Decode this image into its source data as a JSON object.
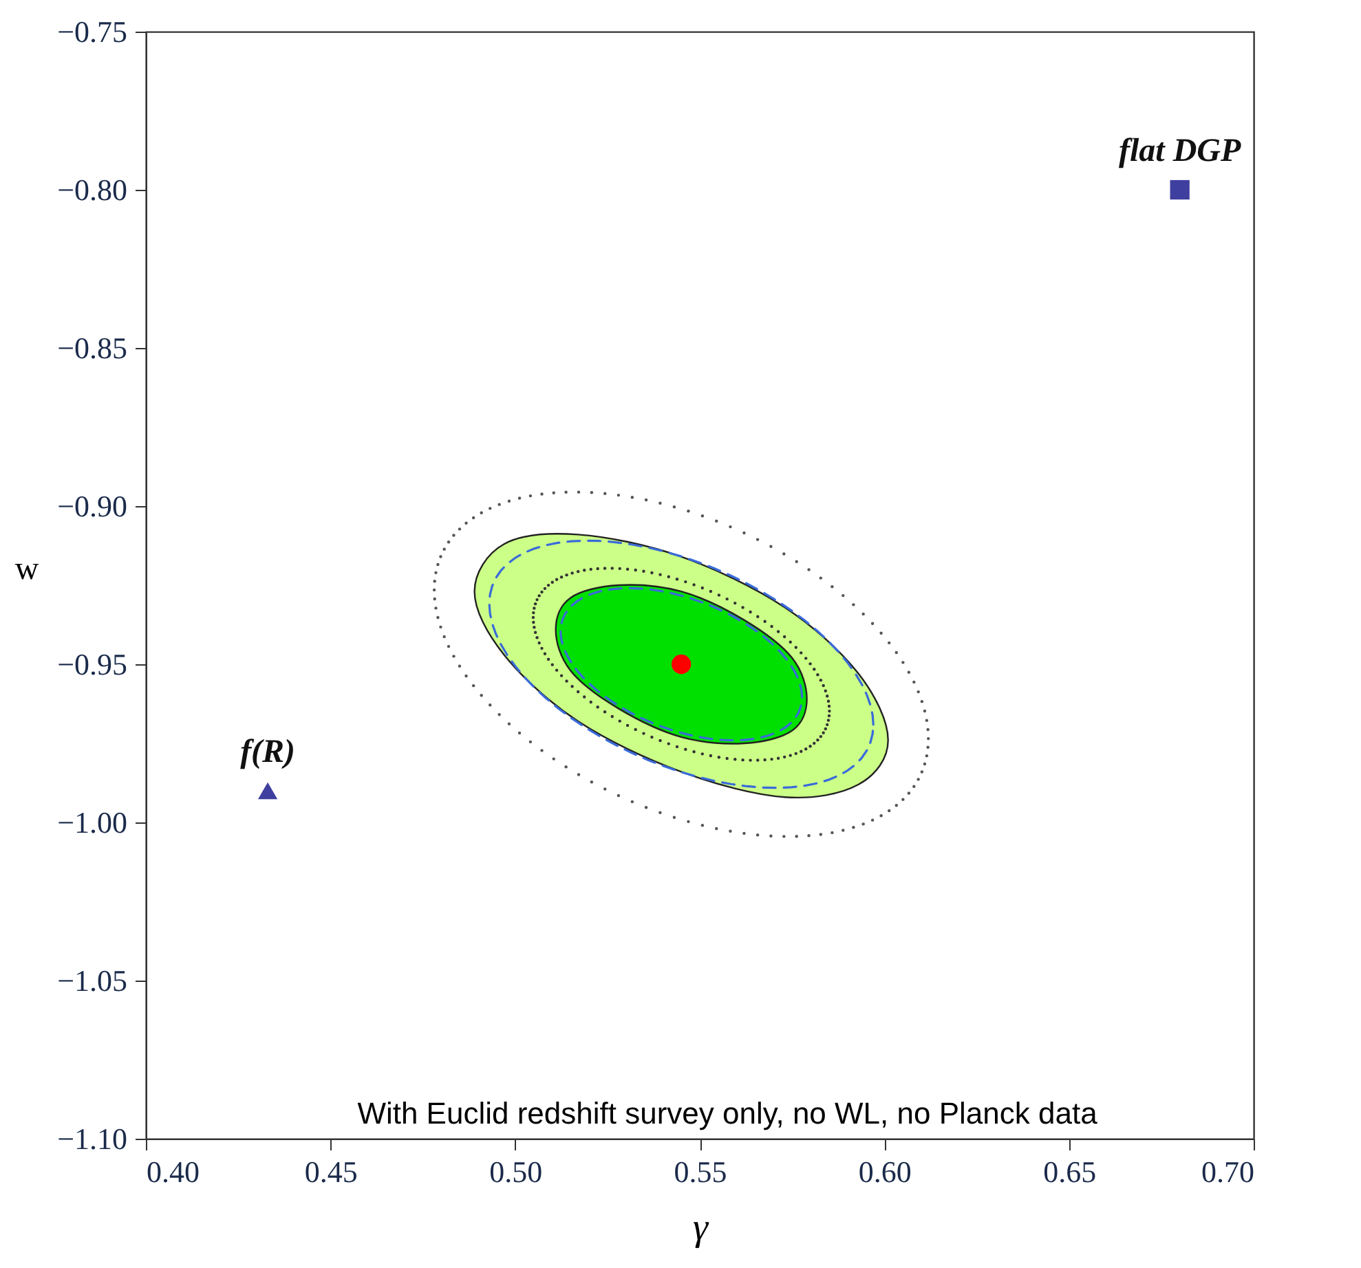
{
  "chart_data": {
    "type": "scatter",
    "xlabel": "γ",
    "ylabel": "w",
    "xlim": [
      0.4,
      0.7
    ],
    "ylim": [
      -1.1,
      -0.75
    ],
    "xticks": [
      {
        "value": 0.4,
        "label": "0.40"
      },
      {
        "value": 0.45,
        "label": "0.45"
      },
      {
        "value": 0.5,
        "label": "0.50"
      },
      {
        "value": 0.55,
        "label": "0.55"
      },
      {
        "value": 0.6,
        "label": "0.60"
      },
      {
        "value": 0.65,
        "label": "0.65"
      },
      {
        "value": 0.7,
        "label": "0.70"
      }
    ],
    "yticks": [
      {
        "value": -1.1,
        "label": "−1.10"
      },
      {
        "value": -1.05,
        "label": "−1.05"
      },
      {
        "value": -1.0,
        "label": "−1.00"
      },
      {
        "value": -0.95,
        "label": "−0.95"
      },
      {
        "value": -0.9,
        "label": "−0.90"
      },
      {
        "value": -0.85,
        "label": "−0.85"
      },
      {
        "value": -0.8,
        "label": "−0.80"
      },
      {
        "value": -0.75,
        "label": "−0.75"
      }
    ],
    "grid": false,
    "series": [
      {
        "type": "area",
        "color": "#ccff88",
        "x": [
          0.601,
          0.593,
          0.573,
          0.545,
          0.517,
          0.497,
          0.489,
          0.497,
          0.517,
          0.545,
          0.573,
          0.593
        ],
        "values": [
          -0.974,
          -0.953,
          -0.932,
          -0.916,
          -0.909,
          -0.912,
          -0.927,
          -0.947,
          -0.968,
          -0.984,
          -0.992,
          -0.988
        ]
      },
      {
        "type": "area",
        "color": "#00e000",
        "x": [
          0.579,
          0.575,
          0.562,
          0.545,
          0.528,
          0.515,
          0.511,
          0.515,
          0.528,
          0.545,
          0.562,
          0.575
        ],
        "values": [
          -0.961,
          -0.948,
          -0.936,
          -0.927,
          -0.925,
          -0.929,
          -0.939,
          -0.952,
          -0.964,
          -0.973,
          -0.975,
          -0.971
        ]
      },
      {
        "marker": "circle",
        "color": "#ff0000",
        "x": [
          0.545
        ],
        "values": [
          -0.95
        ]
      },
      {
        "marker": "triangle",
        "color": "#3f3f9f",
        "x": [
          0.433
        ],
        "values": [
          -0.99
        ]
      },
      {
        "marker": "square",
        "color": "#3f3f9f",
        "x": [
          0.68
        ],
        "values": [
          -0.8
        ]
      }
    ],
    "annotations": [
      {
        "text": "f(R)",
        "x": 0.433,
        "y": -0.99
      },
      {
        "text": "flat DGP",
        "x": 0.68,
        "y": -0.8
      },
      "With Euclid redshift survey only, no WL, no Planck data"
    ]
  }
}
